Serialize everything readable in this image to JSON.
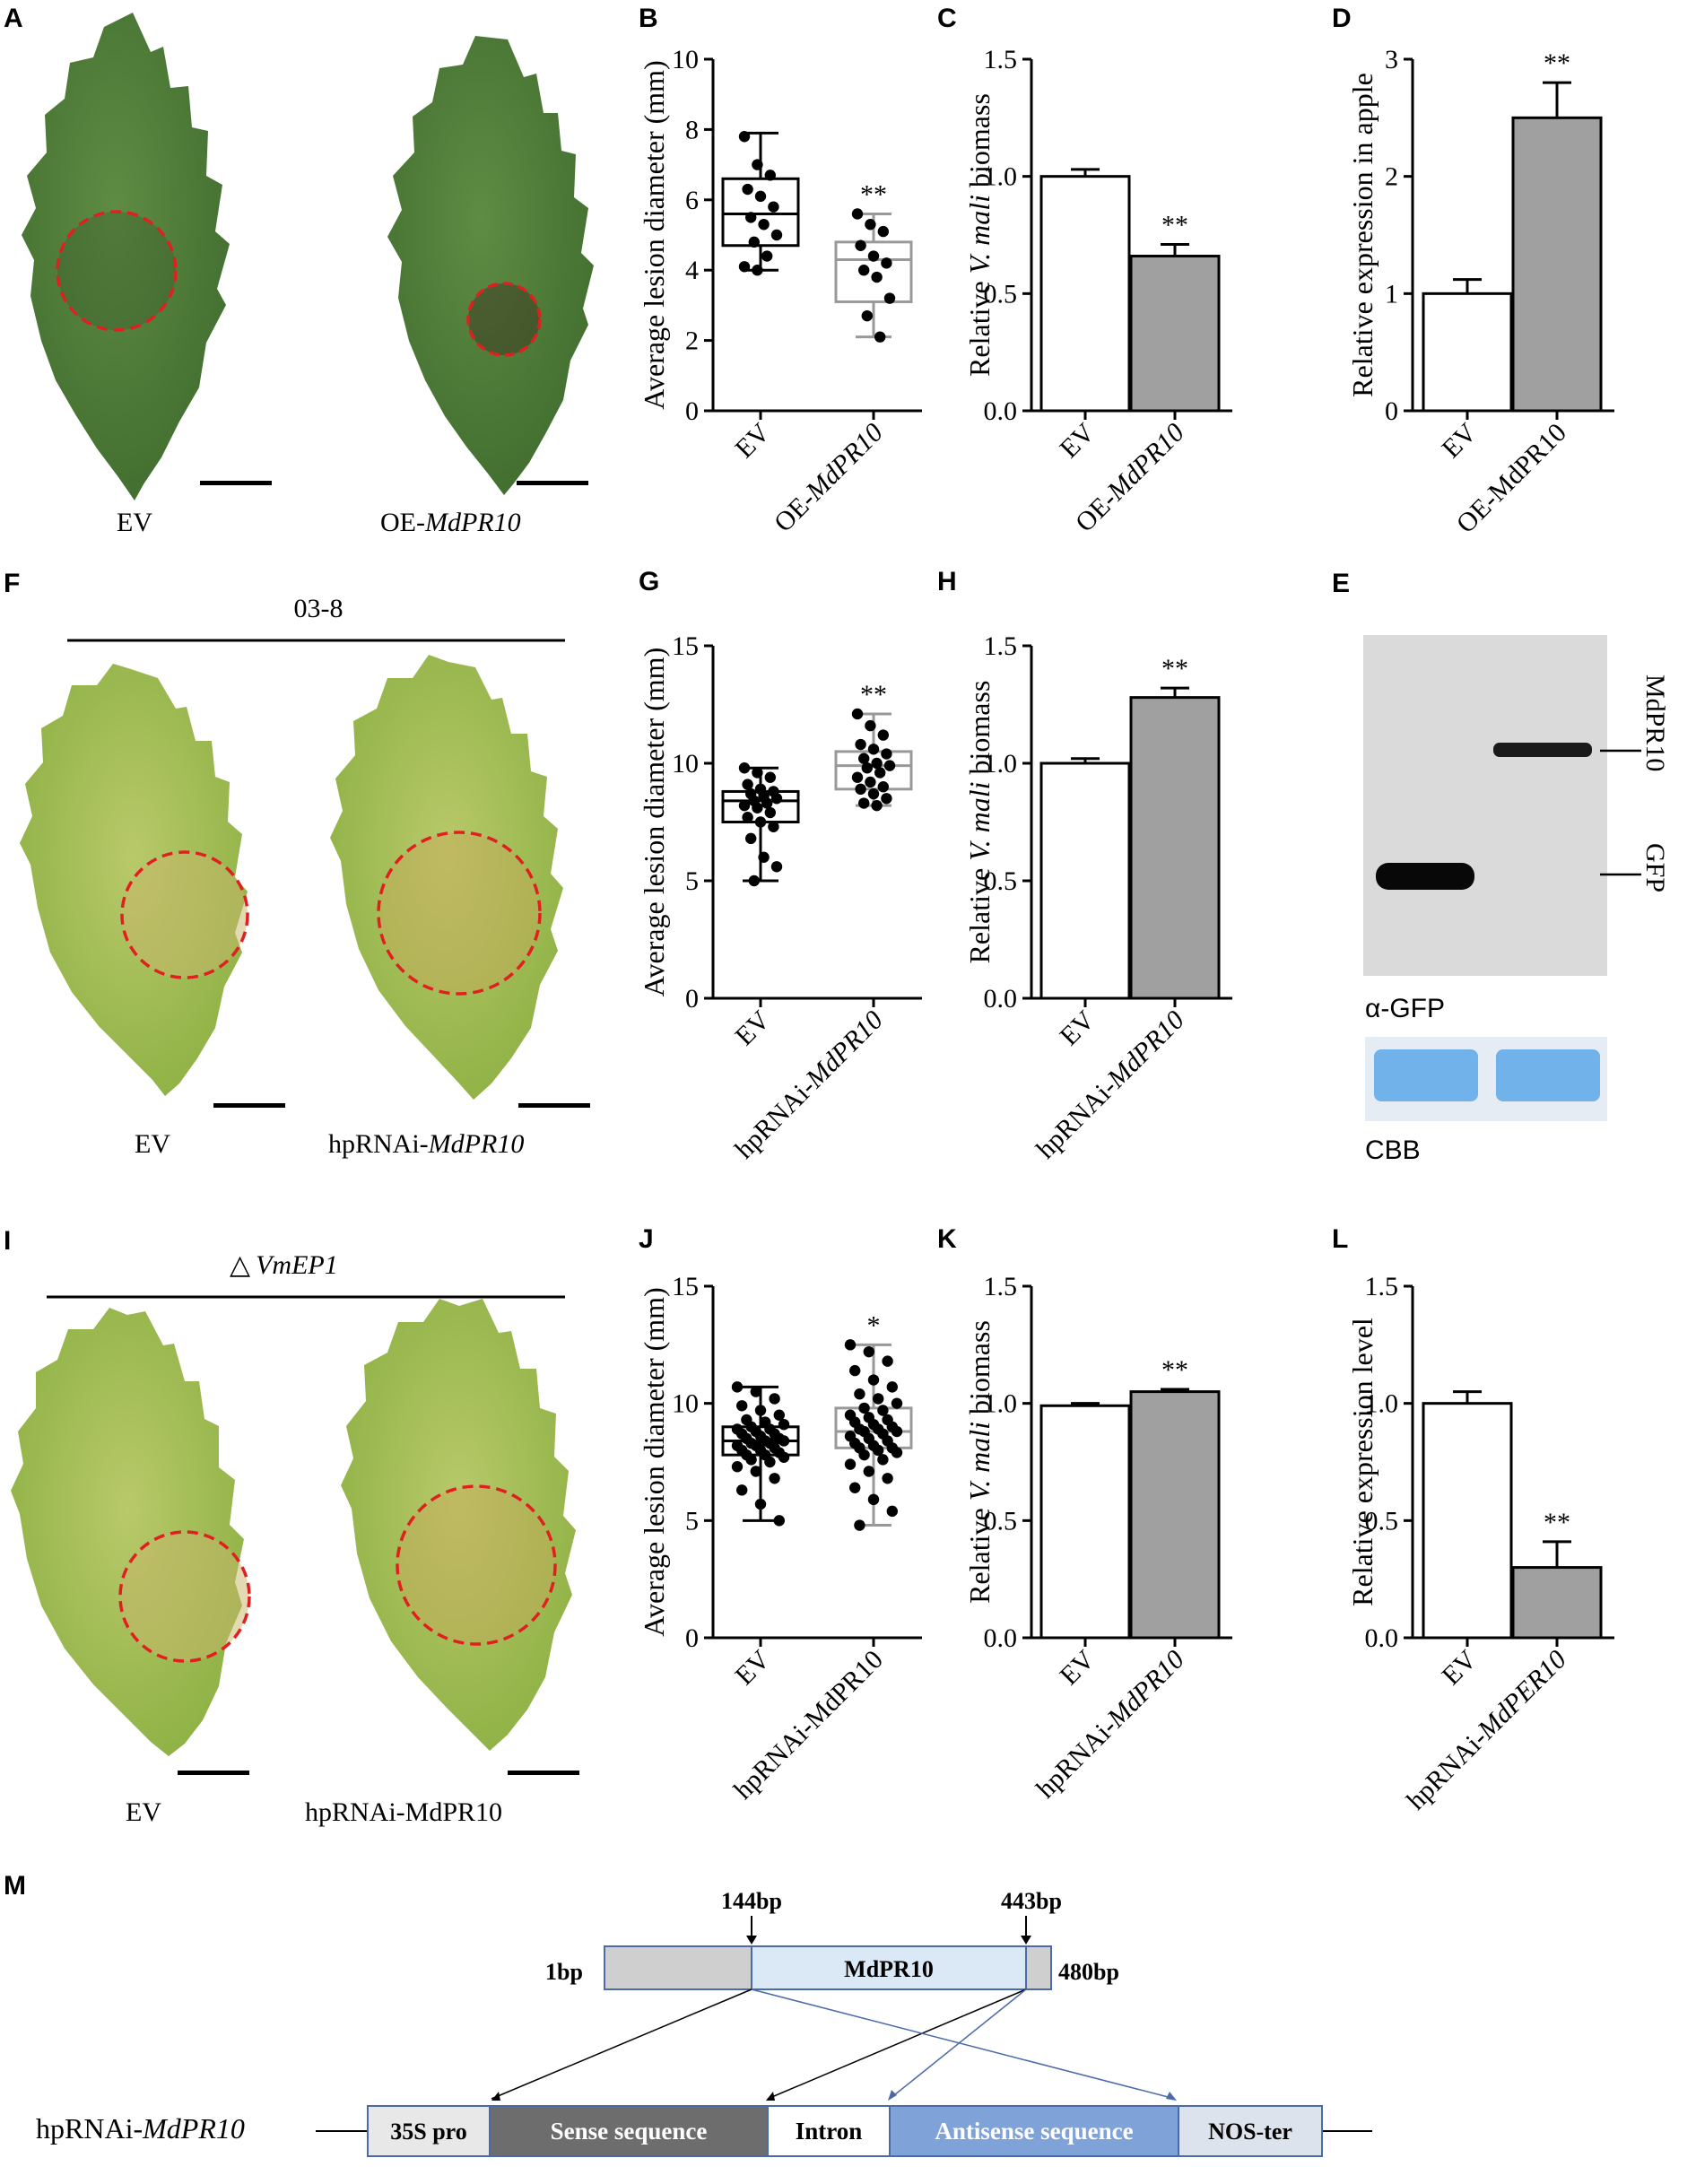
{
  "colors": {
    "leaf_dark": "#4d7a3a",
    "leaf_light": "#98b84e",
    "circle": "#e02020",
    "grey_bar": "#a0a0a0",
    "grey_box": "#999999",
    "gene_grey": "#cfcfcf",
    "gene_blue": "#dbe9f7",
    "sense_dark": "#6d6d6d",
    "antisense_blue": "#7fa2d9",
    "cbb_blue": "#5aa8e6",
    "blot_bg": "#d8d8d8"
  },
  "panel_labels": {
    "A": "A",
    "B": "B",
    "C": "C",
    "D": "D",
    "E": "E",
    "F": "F",
    "G": "G",
    "H": "H",
    "I": "I",
    "J": "J",
    "K": "K",
    "L": "L",
    "M": "M"
  },
  "panel_A": {
    "left_label": "EV",
    "right_prefix": "OE-",
    "right_gene": "MdPR10"
  },
  "panel_F": {
    "group": "03-8",
    "left_label": "EV",
    "right_prefix": "hpRNAi-",
    "right_gene": "MdPR10"
  },
  "panel_I": {
    "group_symbol": "△",
    "group_gene": "VmEP1",
    "left_label": "EV",
    "right_label": "hpRNAi-MdPR10"
  },
  "panel_E": {
    "band_top": "MdPR10",
    "band_bottom": "GFP",
    "blot_label": "α-GFP",
    "stain_label": "CBB"
  },
  "panel_M": {
    "pos_left": "144bp",
    "pos_right": "443bp",
    "start": "1bp",
    "end": "480bp",
    "gene": "MdPR10",
    "construct_prefix": "hpRNAi-",
    "construct_gene": "MdPR10",
    "segments": [
      "35S pro",
      "Sense sequence",
      "Intron",
      "Antisense sequence",
      "NOS-ter"
    ]
  },
  "chart_data": [
    {
      "panel": "B",
      "type": "box",
      "ylabel": "Average lesion diameter (mm)",
      "ylim": [
        0,
        10
      ],
      "yticks": [
        "0",
        "2",
        "4",
        "6",
        "8",
        "10"
      ],
      "categories": [
        "EV",
        "OE-MdPR10"
      ],
      "boxes": [
        {
          "min": 4.0,
          "q1": 4.7,
          "median": 5.6,
          "q3": 6.6,
          "max": 7.9
        },
        {
          "min": 2.1,
          "q1": 3.1,
          "median": 4.3,
          "q3": 4.8,
          "max": 5.6
        }
      ],
      "points": [
        [
          7.8,
          7.0,
          6.7,
          6.3,
          6.1,
          5.8,
          5.5,
          5.3,
          5.0,
          4.8,
          4.4,
          4.1,
          4.0
        ],
        [
          5.6,
          5.3,
          5.1,
          4.7,
          4.4,
          4.2,
          4.0,
          3.8,
          3.2,
          2.7,
          2.1
        ]
      ],
      "annotation": "**"
    },
    {
      "panel": "C",
      "type": "bar",
      "ylabel": "Relative V. mali biomass",
      "ylim": [
        0,
        1.5
      ],
      "yticks": [
        "0.0",
        "0.5",
        "1.0",
        "1.5"
      ],
      "categories": [
        "EV",
        "OE-MdPR10"
      ],
      "values": [
        1.0,
        0.66
      ],
      "errors": [
        0.03,
        0.05
      ],
      "annotation": "**"
    },
    {
      "panel": "D",
      "type": "bar",
      "ylabel": "Relative expression in apple",
      "ylim": [
        0,
        3
      ],
      "yticks": [
        "0",
        "1",
        "2",
        "3"
      ],
      "categories": [
        "EV",
        "OE-MdPR10"
      ],
      "values": [
        1.0,
        2.5
      ],
      "errors": [
        0.12,
        0.3
      ],
      "annotation": "**"
    },
    {
      "panel": "G",
      "type": "box",
      "ylabel": "Average lesion diameter (mm)",
      "ylim": [
        0,
        15
      ],
      "yticks": [
        "0",
        "5",
        "10",
        "15"
      ],
      "categories": [
        "EV",
        "hpRNAi-MdPR10"
      ],
      "boxes": [
        {
          "min": 5.0,
          "q1": 7.5,
          "median": 8.4,
          "q3": 8.8,
          "max": 9.8
        },
        {
          "min": 8.2,
          "q1": 8.9,
          "median": 9.9,
          "q3": 10.5,
          "max": 12.1
        }
      ],
      "points": [
        [
          9.8,
          9.6,
          9.4,
          9.1,
          8.9,
          8.8,
          8.7,
          8.6,
          8.5,
          8.4,
          8.3,
          8.2,
          8.1,
          7.9,
          7.7,
          7.5,
          7.3,
          6.8,
          6.0,
          5.6,
          5.0
        ],
        [
          12.1,
          11.6,
          11.2,
          10.8,
          10.6,
          10.4,
          10.2,
          10.0,
          9.9,
          9.8,
          9.6,
          9.4,
          9.2,
          9.0,
          8.9,
          8.7,
          8.5,
          8.3,
          8.2
        ]
      ],
      "annotation": "**"
    },
    {
      "panel": "H",
      "type": "bar",
      "ylabel": "Relative V. mali biomass",
      "ylim": [
        0,
        1.5
      ],
      "yticks": [
        "0.0",
        "0.5",
        "1.0",
        "1.5"
      ],
      "categories": [
        "EV",
        "hpRNAi-MdPR10"
      ],
      "values": [
        1.0,
        1.28
      ],
      "errors": [
        0.02,
        0.04
      ],
      "annotation": "**"
    },
    {
      "panel": "J",
      "type": "box",
      "ylabel": "Average lesion diameter (mm)",
      "ylim": [
        0,
        15
      ],
      "yticks": [
        "0",
        "5",
        "10",
        "15"
      ],
      "categories": [
        "EV",
        "hpRNAi-MdPR10"
      ],
      "boxes": [
        {
          "min": 5.0,
          "q1": 7.8,
          "median": 8.4,
          "q3": 9.0,
          "max": 10.7
        },
        {
          "min": 4.8,
          "q1": 8.1,
          "median": 8.8,
          "q3": 9.8,
          "max": 12.5
        }
      ],
      "points": [
        [
          10.7,
          10.5,
          10.2,
          9.9,
          9.7,
          9.5,
          9.3,
          9.2,
          9.1,
          9.0,
          8.9,
          8.9,
          8.8,
          8.7,
          8.7,
          8.6,
          8.5,
          8.5,
          8.4,
          8.4,
          8.3,
          8.3,
          8.2,
          8.2,
          8.1,
          8.0,
          8.0,
          7.9,
          7.8,
          7.8,
          7.7,
          7.6,
          7.5,
          7.3,
          7.1,
          6.8,
          6.3,
          5.7,
          5.0
        ],
        [
          12.5,
          12.2,
          11.8,
          11.4,
          11.0,
          10.7,
          10.4,
          10.2,
          10.0,
          9.8,
          9.7,
          9.5,
          9.4,
          9.3,
          9.2,
          9.1,
          9.0,
          8.9,
          8.9,
          8.8,
          8.8,
          8.7,
          8.6,
          8.5,
          8.4,
          8.3,
          8.2,
          8.1,
          8.1,
          8.0,
          7.9,
          7.8,
          7.6,
          7.4,
          7.1,
          6.8,
          6.4,
          5.9,
          5.4,
          4.8
        ]
      ],
      "annotation": "*"
    },
    {
      "panel": "K",
      "type": "bar",
      "ylabel": "Relative V. mali biomass",
      "ylim": [
        0,
        1.5
      ],
      "yticks": [
        "0.0",
        "0.5",
        "1.0",
        "1.5"
      ],
      "categories": [
        "EV",
        "hpRNAi-MdPR10"
      ],
      "values": [
        0.99,
        1.05
      ],
      "errors": [
        0.01,
        0.01
      ],
      "annotation": "**"
    },
    {
      "panel": "L",
      "type": "bar",
      "ylabel": "Relative expression level",
      "ylim": [
        0,
        1.5
      ],
      "yticks": [
        "0.0",
        "0.5",
        "1.0",
        "1.5"
      ],
      "categories": [
        "EV",
        "hpRNAi-MdPER10"
      ],
      "values": [
        1.0,
        0.3
      ],
      "errors": [
        0.05,
        0.11
      ],
      "annotation": "**"
    }
  ]
}
